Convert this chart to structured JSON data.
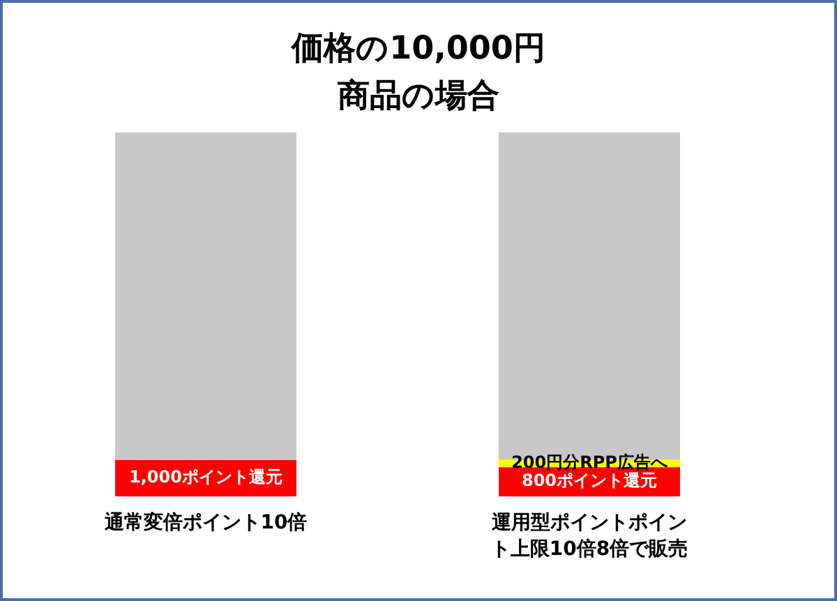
{
  "chart_data": {
    "type": "bar",
    "title": "価格の10,000円商品の場合",
    "categories": [
      "通常変倍ポイント10倍",
      "運用型ポイントポイント上限10倍8倍で販売"
    ],
    "stacked": true,
    "legend": false,
    "grid": false,
    "series": [
      {
        "color": "#ff0000",
        "values": [
          1000,
          800
        ],
        "value_labels": [
          "1,000ポイント還元",
          "800ポイント還元"
        ]
      },
      {
        "color": "#ffff00",
        "values": [
          null,
          200
        ],
        "value_labels": [
          null,
          "200円分RPP広告へ"
        ]
      },
      {
        "color": "#c8c8c8",
        "values": [
          9000,
          9000
        ],
        "value_labels": [
          null,
          null
        ]
      }
    ]
  }
}
